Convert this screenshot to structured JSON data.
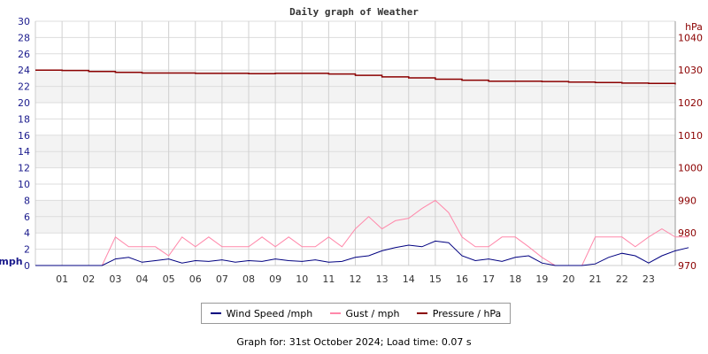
{
  "chart_data": {
    "type": "line",
    "title": "Daily graph of Weather",
    "x_tick_labels": [
      "01",
      "02",
      "03",
      "04",
      "05",
      "06",
      "07",
      "08",
      "09",
      "10",
      "11",
      "12",
      "13",
      "14",
      "15",
      "16",
      "17",
      "18",
      "19",
      "20",
      "21",
      "22",
      "23"
    ],
    "xlim_hours": [
      0,
      24
    ],
    "left_axis": {
      "label": "mph",
      "ylim": [
        0,
        30
      ],
      "ticks": [
        0,
        2,
        4,
        6,
        8,
        10,
        12,
        14,
        16,
        18,
        20,
        22,
        24,
        26,
        28,
        30
      ],
      "color": "#1a1a8c"
    },
    "right_axis": {
      "label": "hPa",
      "ylim": [
        970,
        1045
      ],
      "ticks": [
        970,
        980,
        990,
        1000,
        1010,
        1020,
        1030,
        1040
      ],
      "color": "#8b0000"
    },
    "grid": true,
    "legend_placement": "bottom",
    "series": [
      {
        "name": "Wind Speed /mph",
        "axis": "left",
        "color": "#000080",
        "x_hours_step": 0.5,
        "values": [
          0,
          0,
          0,
          0,
          0,
          0,
          0.8,
          1.0,
          0.4,
          0.6,
          0.8,
          0.3,
          0.6,
          0.5,
          0.7,
          0.4,
          0.6,
          0.5,
          0.8,
          0.6,
          0.5,
          0.7,
          0.4,
          0.5,
          1.0,
          1.2,
          1.8,
          2.2,
          2.5,
          2.3,
          3.0,
          2.8,
          1.2,
          0.6,
          0.8,
          0.5,
          1.0,
          1.2,
          0.3,
          0,
          0,
          0,
          0.2,
          1.0,
          1.5,
          1.2,
          0.3,
          1.2,
          1.8,
          2.2
        ]
      },
      {
        "name": "Gust / mph",
        "axis": "left",
        "color": "#ff88aa",
        "x_hours_step": 0.5,
        "values": [
          0,
          0,
          0,
          0,
          0,
          0,
          3.5,
          2.3,
          2.3,
          2.3,
          1.2,
          3.5,
          2.3,
          3.5,
          2.3,
          2.3,
          2.3,
          3.5,
          2.3,
          3.5,
          2.3,
          2.3,
          3.5,
          2.3,
          4.5,
          6.0,
          4.5,
          5.5,
          5.8,
          7.0,
          8.0,
          6.5,
          3.5,
          2.3,
          2.3,
          3.5,
          3.5,
          2.3,
          1.0,
          0,
          0,
          0,
          3.5,
          3.5,
          3.5,
          2.3,
          3.5,
          4.5,
          3.5,
          3.5
        ]
      },
      {
        "name": "Pressure / hPa",
        "axis": "right",
        "color": "#8b0000",
        "x_hours_step": 1,
        "values": [
          1030,
          1029.9,
          1029.6,
          1029.3,
          1029.1,
          1029.1,
          1029,
          1029,
          1028.9,
          1029,
          1029,
          1028.8,
          1028.4,
          1027.9,
          1027.6,
          1027.2,
          1026.9,
          1026.6,
          1026.6,
          1026.5,
          1026.3,
          1026.2,
          1026.0,
          1025.9,
          1025.6
        ]
      }
    ]
  },
  "footer": "Graph for: 31st October 2024; Load time: 0.07 s"
}
